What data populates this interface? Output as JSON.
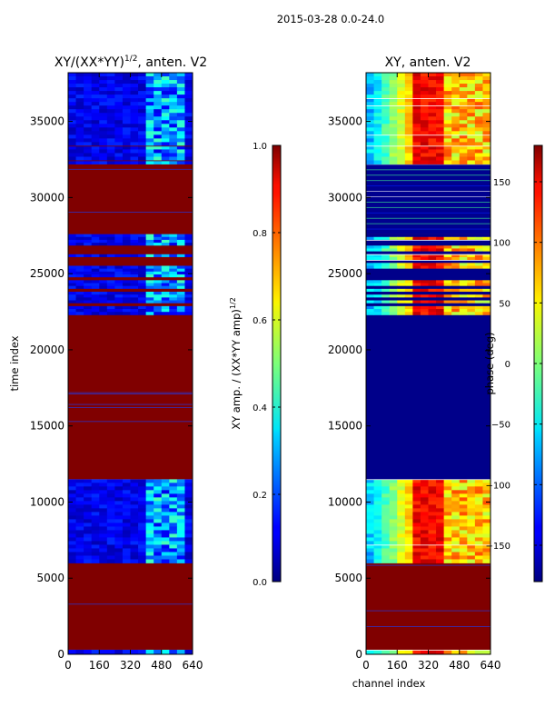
{
  "figure_title": "2015-03-28 0.0-24.0",
  "chart_data": [
    {
      "type": "heatmap",
      "title": "XY/(XX*YY)^{1/2}, anten. V2",
      "title_main": "XY/(XX*YY)",
      "title_sup": "1/2",
      "title_tail": ", anten. V2",
      "xlabel": "",
      "ylabel": "time index",
      "xlim": [
        0,
        640
      ],
      "ylim": [
        0,
        38200
      ],
      "x_ticks": [
        0,
        160,
        320,
        480,
        640
      ],
      "y_ticks": [
        0,
        5000,
        10000,
        15000,
        20000,
        25000,
        30000,
        35000
      ],
      "colorbar": {
        "label": "XY amp. / (XX*YY amp)^{1/2}",
        "label_main": "XY amp. / (XX*YY amp)",
        "label_sup": "1/2",
        "range": [
          0,
          1
        ],
        "ticks": [
          "0.0",
          "0.2",
          "0.4",
          "0.6",
          "0.8",
          "1.0"
        ],
        "tick_values": [
          0,
          0.2,
          0.4,
          0.6,
          0.8,
          1.0
        ]
      },
      "regions": [
        {
          "y0": 0,
          "y1": 300,
          "kind": "low"
        },
        {
          "y0": 300,
          "y1": 6000,
          "kind": "flagged"
        },
        {
          "y0": 6000,
          "y1": 11500,
          "kind": "low"
        },
        {
          "y0": 11500,
          "y1": 22300,
          "kind": "flagged"
        },
        {
          "y0": 22300,
          "y1": 27600,
          "kind": "striped"
        },
        {
          "y0": 27600,
          "y1": 32200,
          "kind": "flagged"
        },
        {
          "y0": 32200,
          "y1": 38200,
          "kind": "low"
        }
      ]
    },
    {
      "type": "heatmap",
      "title": "XY, anten. V2",
      "xlabel": "channel index",
      "ylabel": "",
      "xlim": [
        0,
        640
      ],
      "ylim": [
        0,
        38200
      ],
      "x_ticks": [
        0,
        160,
        320,
        480,
        640
      ],
      "y_ticks": [
        0,
        5000,
        10000,
        15000,
        20000,
        25000,
        30000,
        35000
      ],
      "colorbar": {
        "label": "phase (deg)",
        "range": [
          -180,
          180
        ],
        "ticks": [
          "−150",
          "−100",
          "−50",
          "0",
          "50",
          "100",
          "150"
        ],
        "tick_values": [
          -150,
          -100,
          -50,
          0,
          50,
          100,
          150
        ]
      },
      "regions": [
        {
          "y0": 0,
          "y1": 300,
          "kind": "phase"
        },
        {
          "y0": 300,
          "y1": 6000,
          "kind": "flagged"
        },
        {
          "y0": 6000,
          "y1": 11500,
          "kind": "phase"
        },
        {
          "y0": 11500,
          "y1": 22300,
          "kind": "zero"
        },
        {
          "y0": 22300,
          "y1": 27600,
          "kind": "phase-striped"
        },
        {
          "y0": 27600,
          "y1": 32200,
          "kind": "dark"
        },
        {
          "y0": 32200,
          "y1": 38200,
          "kind": "phase"
        }
      ]
    }
  ]
}
